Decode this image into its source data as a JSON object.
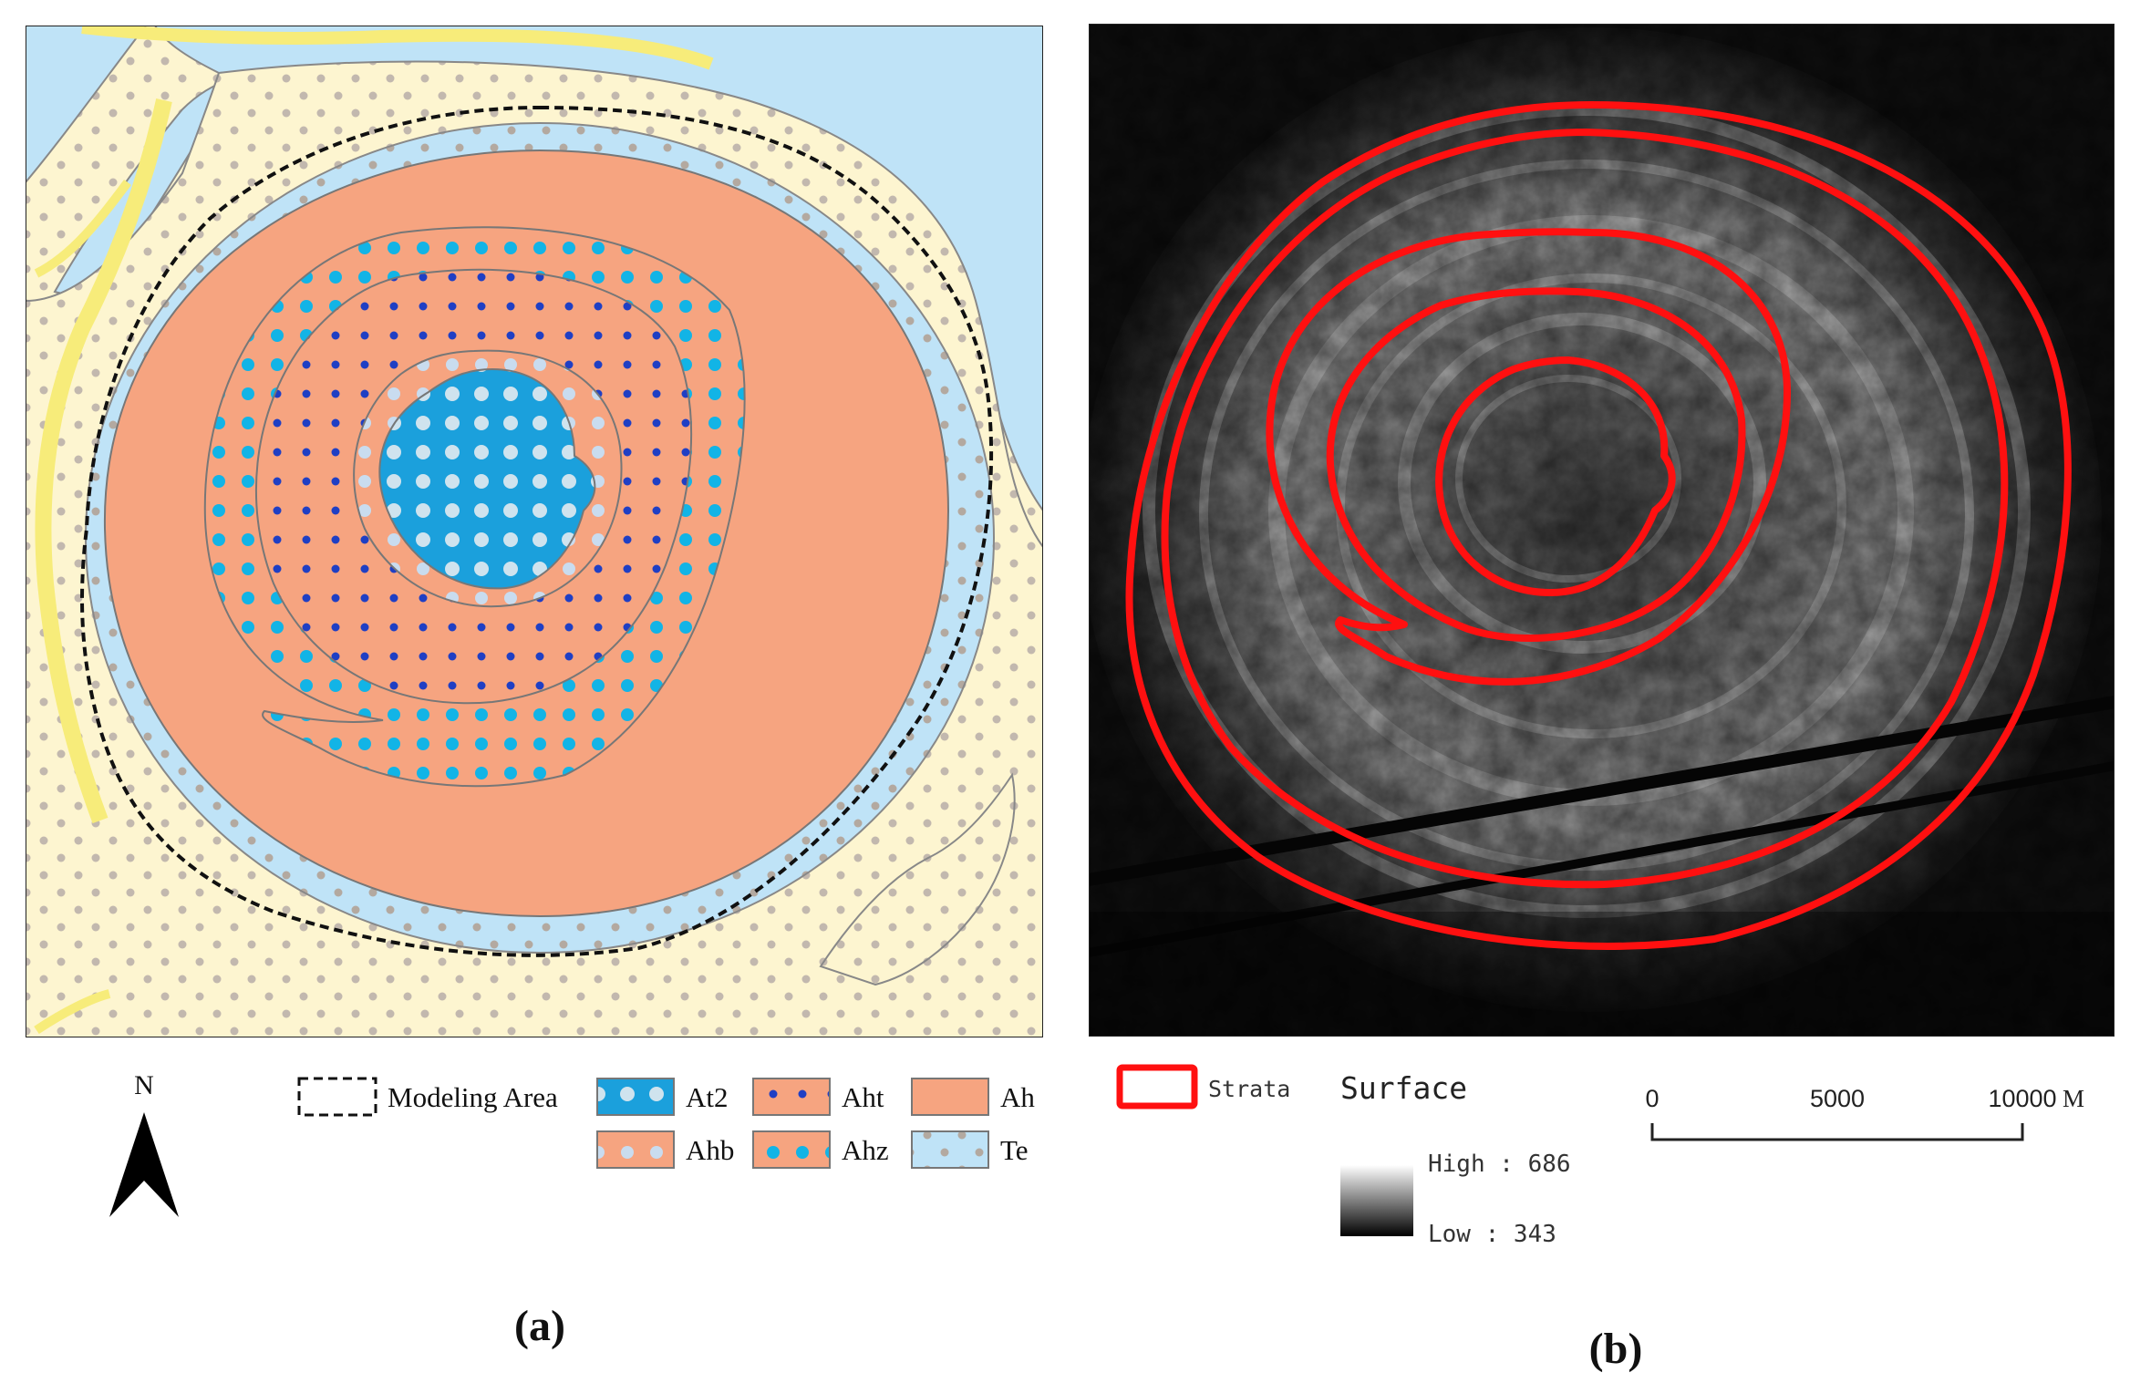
{
  "panel_a": {
    "caption": "(a)",
    "north_label": "N",
    "legend": {
      "modeling_area": "Modeling Area",
      "units": [
        {
          "code": "At2",
          "base": "#1ba0dc",
          "dot": "#cfe3ee"
        },
        {
          "code": "Aht",
          "base": "#f6a480",
          "dot": "#1f3fc4"
        },
        {
          "code": "Ah",
          "base": "#f6a480",
          "dot": null
        },
        {
          "code": "Ahb",
          "base": "#f6a480",
          "dot": "#c9dcef"
        },
        {
          "code": "Ahz",
          "base": "#f6a480",
          "dot": "#12b4e6"
        },
        {
          "code": "Te",
          "base": "#bfe3f7",
          "dot": "#b3a9a0"
        }
      ]
    }
  },
  "panel_b": {
    "caption": "(b)",
    "legend": {
      "strata_label": "Strata",
      "strata_color": "#ff1010",
      "surface_title": "Surface",
      "high_label": "High : 686",
      "low_label": "Low : 343"
    },
    "scale_bar": {
      "ticks": [
        "0",
        "5000",
        "10000"
      ],
      "unit": "M"
    }
  },
  "colors": {
    "sea": "#bfe3f7",
    "sand": "#fdf5d0",
    "river": "#f7ec7a",
    "dots_grey": "#b3a9a0",
    "dots_light": "#cfe3ee",
    "dots_navy": "#1f3fc4",
    "dots_cyan": "#12b4e6"
  }
}
